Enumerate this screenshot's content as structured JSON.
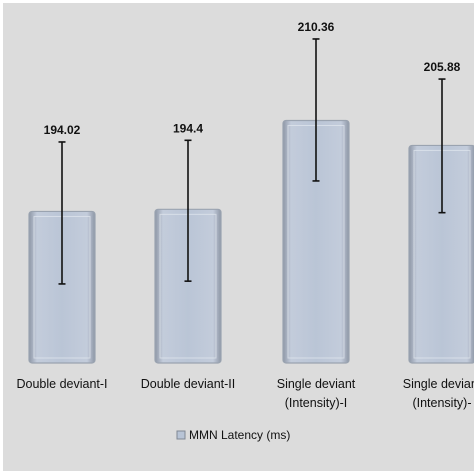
{
  "chart_data": {
    "type": "bar",
    "categories": [
      [
        "Double deviant-I"
      ],
      [
        "Double deviant-II"
      ],
      [
        "Single deviant",
        "(Intensity)-I"
      ],
      [
        "Single deviant",
        "(Intensity)-"
      ]
    ],
    "values": [
      194.02,
      194.4,
      210.36,
      205.88
    ],
    "value_labels": [
      "194.02",
      "194.4",
      "210.36",
      "205.88"
    ],
    "error_bars": [
      [
        181.0,
        206.5
      ],
      [
        181.5,
        206.8
      ],
      [
        199.5,
        225.0
      ],
      [
        193.8,
        217.8
      ]
    ],
    "ylim": [
      166.8,
      232
    ],
    "legend": [
      {
        "name": "MMN Latency (ms)",
        "color": "#b8c4d6"
      }
    ],
    "legend_position": "bottom",
    "bar_color": "#b8c4d6",
    "bar_edge_color": "#9aa3b0",
    "background_color": "#dcdcdc",
    "grid": false,
    "title": "",
    "xlabel": "",
    "ylabel": ""
  }
}
